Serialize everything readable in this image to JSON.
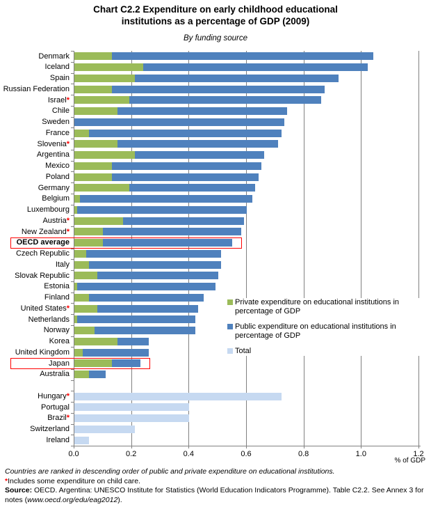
{
  "chart_data": {
    "type": "bar",
    "orientation": "horizontal",
    "stacked": true,
    "title": "Chart C2.2 Expenditure on early childhood  educational\ninstitutions as a percentage of GDP (2009)",
    "subtitle": "By funding source",
    "xlabel": "% of GDP",
    "xlim": [
      0,
      1.2
    ],
    "xticks": [
      "0.0",
      "0.2",
      "0.4",
      "0.6",
      "0.8",
      "1.0",
      "1.2"
    ],
    "grid": "vertical-gridlines",
    "colors": {
      "private": "#9BBB59",
      "public": "#4F81BD",
      "total": "#C6D9F1",
      "gridline": "#808080",
      "highlight_box": "#FF0000",
      "asterisk": "#FF0000"
    },
    "legend": {
      "position": "right-middle",
      "entries": [
        {
          "series": "private",
          "color": "#9BBB59",
          "label": "Private expenditure on educational institutions in percentage of GDP"
        },
        {
          "series": "public",
          "color": "#4F81BD",
          "label": "Public expenditure on educational institutions in percentage of GDP"
        },
        {
          "series": "total",
          "color": "#C6D9F1",
          "label": "Total"
        }
      ]
    },
    "highlighted_rows": [
      "OECD average",
      "Japan"
    ],
    "rows": [
      {
        "country": "Denmark",
        "asterisk": false,
        "bold": false,
        "highlight": false,
        "private": 0.13,
        "public": 0.91,
        "total": 1.04
      },
      {
        "country": "Iceland",
        "asterisk": false,
        "bold": false,
        "highlight": false,
        "private": 0.24,
        "public": 0.78,
        "total": 1.02
      },
      {
        "country": "Spain",
        "asterisk": false,
        "bold": false,
        "highlight": false,
        "private": 0.21,
        "public": 0.71,
        "total": 0.92
      },
      {
        "country": "Russian Federation",
        "asterisk": false,
        "bold": false,
        "highlight": false,
        "private": 0.13,
        "public": 0.74,
        "total": 0.87
      },
      {
        "country": "Israel",
        "asterisk": true,
        "bold": false,
        "highlight": false,
        "private": 0.19,
        "public": 0.67,
        "total": 0.86
      },
      {
        "country": "Chile",
        "asterisk": false,
        "bold": false,
        "highlight": false,
        "private": 0.15,
        "public": 0.59,
        "total": 0.74
      },
      {
        "country": "Sweden",
        "asterisk": false,
        "bold": false,
        "highlight": false,
        "private": 0.0,
        "public": 0.73,
        "total": 0.73
      },
      {
        "country": "France",
        "asterisk": false,
        "bold": false,
        "highlight": false,
        "private": 0.05,
        "public": 0.67,
        "total": 0.72
      },
      {
        "country": "Slovenia",
        "asterisk": true,
        "bold": false,
        "highlight": false,
        "private": 0.15,
        "public": 0.56,
        "total": 0.71
      },
      {
        "country": "Argentina",
        "asterisk": false,
        "bold": false,
        "highlight": false,
        "private": 0.21,
        "public": 0.45,
        "total": 0.66
      },
      {
        "country": "Mexico",
        "asterisk": false,
        "bold": false,
        "highlight": false,
        "private": 0.13,
        "public": 0.52,
        "total": 0.65
      },
      {
        "country": "Poland",
        "asterisk": false,
        "bold": false,
        "highlight": false,
        "private": 0.13,
        "public": 0.51,
        "total": 0.64
      },
      {
        "country": "Germany",
        "asterisk": false,
        "bold": false,
        "highlight": false,
        "private": 0.19,
        "public": 0.44,
        "total": 0.63
      },
      {
        "country": "Belgium",
        "asterisk": false,
        "bold": false,
        "highlight": false,
        "private": 0.02,
        "public": 0.6,
        "total": 0.62
      },
      {
        "country": "Luxembourg",
        "asterisk": false,
        "bold": false,
        "highlight": false,
        "private": 0.01,
        "public": 0.59,
        "total": 0.6
      },
      {
        "country": "Austria",
        "asterisk": true,
        "bold": false,
        "highlight": false,
        "private": 0.17,
        "public": 0.42,
        "total": 0.59
      },
      {
        "country": "New Zealand",
        "asterisk": true,
        "bold": false,
        "highlight": false,
        "private": 0.1,
        "public": 0.48,
        "total": 0.58
      },
      {
        "country": "OECD average",
        "asterisk": false,
        "bold": true,
        "highlight": true,
        "private": 0.1,
        "public": 0.45,
        "total": 0.55
      },
      {
        "country": "Czech Republic",
        "asterisk": false,
        "bold": false,
        "highlight": false,
        "private": 0.04,
        "public": 0.47,
        "total": 0.51
      },
      {
        "country": "Italy",
        "asterisk": false,
        "bold": false,
        "highlight": false,
        "private": 0.05,
        "public": 0.46,
        "total": 0.51
      },
      {
        "country": "Slovak Republic",
        "asterisk": false,
        "bold": false,
        "highlight": false,
        "private": 0.08,
        "public": 0.42,
        "total": 0.5
      },
      {
        "country": "Estonia",
        "asterisk": false,
        "bold": false,
        "highlight": false,
        "private": 0.01,
        "public": 0.48,
        "total": 0.49
      },
      {
        "country": "Finland",
        "asterisk": false,
        "bold": false,
        "highlight": false,
        "private": 0.05,
        "public": 0.4,
        "total": 0.45
      },
      {
        "country": "United States",
        "asterisk": true,
        "bold": false,
        "highlight": false,
        "private": 0.08,
        "public": 0.35,
        "total": 0.43
      },
      {
        "country": "Netherlands",
        "asterisk": false,
        "bold": false,
        "highlight": false,
        "private": 0.01,
        "public": 0.41,
        "total": 0.42
      },
      {
        "country": "Norway",
        "asterisk": false,
        "bold": false,
        "highlight": false,
        "private": 0.07,
        "public": 0.35,
        "total": 0.42
      },
      {
        "country": "Korea",
        "asterisk": false,
        "bold": false,
        "highlight": false,
        "private": 0.15,
        "public": 0.11,
        "total": 0.26
      },
      {
        "country": "United Kingdom",
        "asterisk": false,
        "bold": false,
        "highlight": false,
        "private": 0.03,
        "public": 0.23,
        "total": 0.26
      },
      {
        "country": "Japan",
        "asterisk": false,
        "bold": false,
        "highlight": true,
        "private": 0.13,
        "public": 0.1,
        "total": 0.23
      },
      {
        "country": "Australia",
        "asterisk": false,
        "bold": false,
        "highlight": false,
        "private": 0.05,
        "public": 0.06,
        "total": 0.11
      }
    ],
    "total_only_rows": [
      {
        "country": "Hungary",
        "asterisk": true,
        "total": 0.72
      },
      {
        "country": "Portugal",
        "asterisk": false,
        "total": 0.4
      },
      {
        "country": "Brazil",
        "asterisk": true,
        "total": 0.4
      },
      {
        "country": "Switzerland",
        "asterisk": false,
        "total": 0.21
      },
      {
        "country": "Ireland",
        "asterisk": false,
        "total": 0.05
      }
    ]
  },
  "footnotes": {
    "ranking_note": "Countries are ranked in descending order of public and private expenditure on educational institutions.",
    "asterisk_mark": "*",
    "asterisk_note": "Includes some expenditure on child care.",
    "source_label": "Source:",
    "source_text_before_url": " OECD. Argentina: UNESCO Institute for Statistics (World Education Indicators Programme). Table C2.2. See Annex 3 for notes (",
    "source_url": "www.oecd.org/edu/eag2012",
    "source_text_after_url": ")."
  }
}
